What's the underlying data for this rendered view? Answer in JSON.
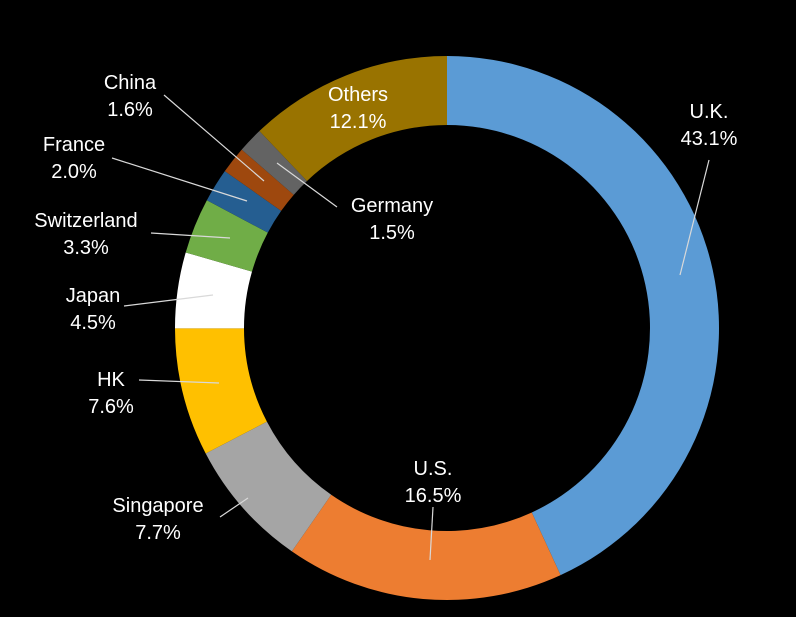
{
  "chart_data": {
    "type": "pie",
    "variant": "donut",
    "title": "",
    "order": "clockwise from 12 o'clock",
    "slices": [
      {
        "label": "U.K.",
        "value": 43.1,
        "value_label": "43.1%",
        "color": "#5b9bd5",
        "text_color": "#ffffff"
      },
      {
        "label": "U.S.",
        "value": 16.5,
        "value_label": "16.5%",
        "color": "#ed7d31",
        "text_color": "#ffffff"
      },
      {
        "label": "Singapore",
        "value": 7.7,
        "value_label": "7.7%",
        "color": "#a5a5a5",
        "text_color": "#ffffff"
      },
      {
        "label": "HK",
        "value": 7.6,
        "value_label": "7.6%",
        "color": "#ffc000",
        "text_color": "#ffffff"
      },
      {
        "label": "Japan",
        "value": 4.5,
        "value_label": "4.5%",
        "color": "#ffffff",
        "text_color": "#ffffff"
      },
      {
        "label": "Switzerland",
        "value": 3.3,
        "value_label": "3.3%",
        "color": "#70ad47",
        "text_color": "#ffffff"
      },
      {
        "label": "France",
        "value": 2.0,
        "value_label": "2.0%",
        "color": "#255e91",
        "text_color": "#ffffff"
      },
      {
        "label": "China",
        "value": 1.6,
        "value_label": "1.6%",
        "color": "#9e480e",
        "text_color": "#ffffff"
      },
      {
        "label": "Germany",
        "value": 1.5,
        "value_label": "1.5%",
        "color": "#636363",
        "text_color": "#ffffff"
      },
      {
        "label": "Others",
        "value": 12.1,
        "value_label": "12.1%",
        "color": "#997300",
        "text_color": "#ffffff"
      }
    ],
    "legend": "none (direct labels with leader lines)",
    "background": "#000000"
  }
}
